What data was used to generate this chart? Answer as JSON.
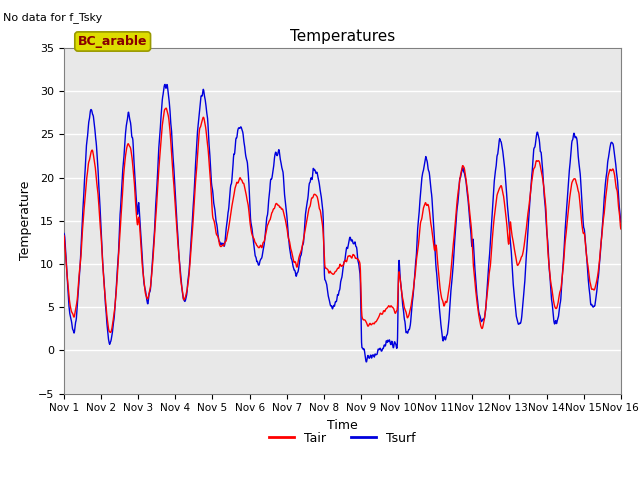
{
  "title": "Temperatures",
  "xlabel": "Time",
  "ylabel": "Temperature",
  "top_left_text": "No data for f_Tsky",
  "legend_label": "BC_arable",
  "ylim": [
    -5,
    35
  ],
  "yticks": [
    -5,
    0,
    5,
    10,
    15,
    20,
    25,
    30,
    35
  ],
  "x_tick_labels": [
    "Nov 1",
    "Nov 2",
    "Nov 3",
    "Nov 4",
    "Nov 5",
    "Nov 6",
    "Nov 7",
    "Nov 8",
    "Nov 9",
    "Nov 10",
    "Nov 11",
    "Nov 12",
    "Nov 13",
    "Nov 14",
    "Nov 15",
    "Nov 16"
  ],
  "tair_color": "#FF0000",
  "tsurf_color": "#0000DD",
  "background_color": "#E8E8E8",
  "legend_box_facecolor": "#DDDD00",
  "legend_box_edgecolor": "#999900",
  "legend_box_text_color": "#880000",
  "n_days": 15,
  "points_per_day": 96,
  "tair_daily_max": [
    23,
    24,
    28,
    27,
    20,
    17,
    18,
    11,
    5,
    17,
    21,
    19,
    22,
    20,
    21
  ],
  "tair_daily_min": [
    4,
    2,
    6,
    6,
    12,
    12,
    10,
    9,
    3,
    4,
    5,
    3,
    10,
    5,
    7
  ],
  "tsurf_daily_max": [
    28,
    27,
    31,
    30,
    26,
    23,
    21,
    13,
    1,
    22,
    21,
    24,
    25,
    25,
    24
  ],
  "tsurf_daily_min": [
    2,
    1,
    6,
    6,
    12,
    10,
    9,
    5,
    -1,
    2,
    1,
    3,
    3,
    3,
    5
  ]
}
